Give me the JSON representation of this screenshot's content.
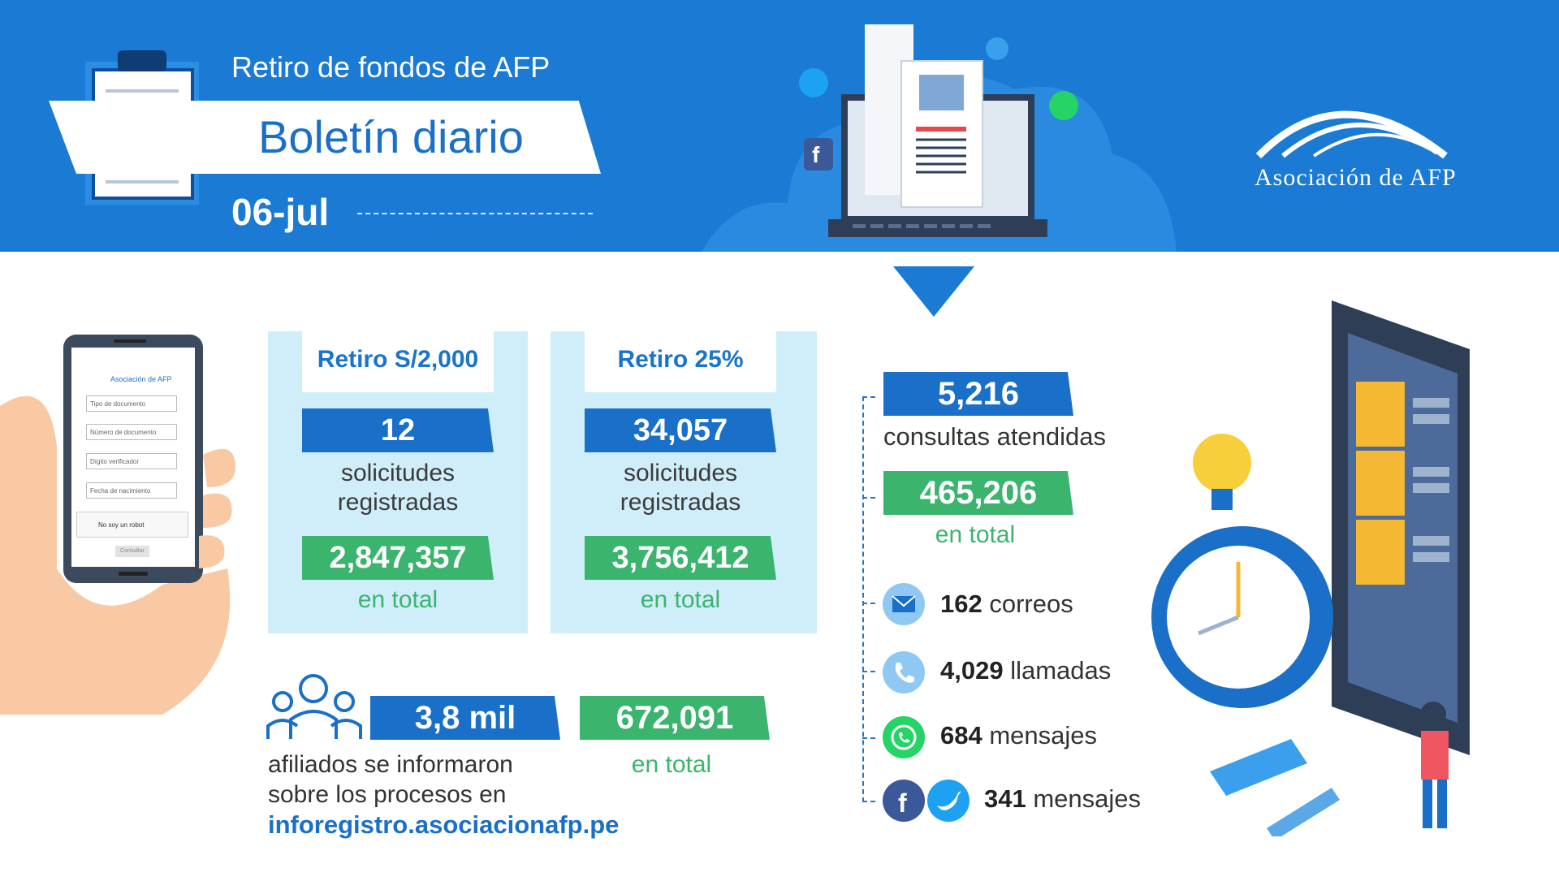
{
  "header": {
    "subtitle": "Retiro de fondos de AFP",
    "title": "Boletín diario",
    "date": "06-jul",
    "logo_text": "Asociación de AFP"
  },
  "panel_2000": {
    "title": "Retiro S/2,000",
    "count": "12",
    "count_label_1": "solicitudes",
    "count_label_2": "registradas",
    "total": "2,847,357",
    "total_label": "en total"
  },
  "panel_25": {
    "title": "Retiro 25%",
    "count": "34,057",
    "count_label_1": "solicitudes",
    "count_label_2": "registradas",
    "total": "3,756,412",
    "total_label": "en total"
  },
  "affiliates": {
    "count": "3,8 mil",
    "line1": "afiliados se informaron",
    "line2": "sobre los procesos en",
    "link": "inforegistro.asociacionafp.pe",
    "total": "672,091",
    "total_label": "en total"
  },
  "consultas": {
    "count": "5,216",
    "label": "consultas atendidas",
    "total": "465,206",
    "total_label": "en total"
  },
  "channels": [
    {
      "icon": "email-icon",
      "value": "162",
      "label": "correos"
    },
    {
      "icon": "phone-icon",
      "value": "4,029",
      "label": "llamadas"
    },
    {
      "icon": "whatsapp-icon",
      "value": "684",
      "label": "mensajes"
    },
    {
      "icon": "social-icon",
      "value": "341",
      "label": "mensajes"
    }
  ],
  "phone_form": {
    "brand": "Asociación de AFP",
    "field1": "Tipo de documento",
    "field2": "Número de documento",
    "field3": "Dígito verificador",
    "field4": "Fecha de nacimiento",
    "captcha": "No soy un robot",
    "button": "Consultar"
  },
  "colors": {
    "blue": "#1a6fc8",
    "green": "#3bb46e",
    "panel": "#cfeef9",
    "header": "#1a7ad4"
  }
}
